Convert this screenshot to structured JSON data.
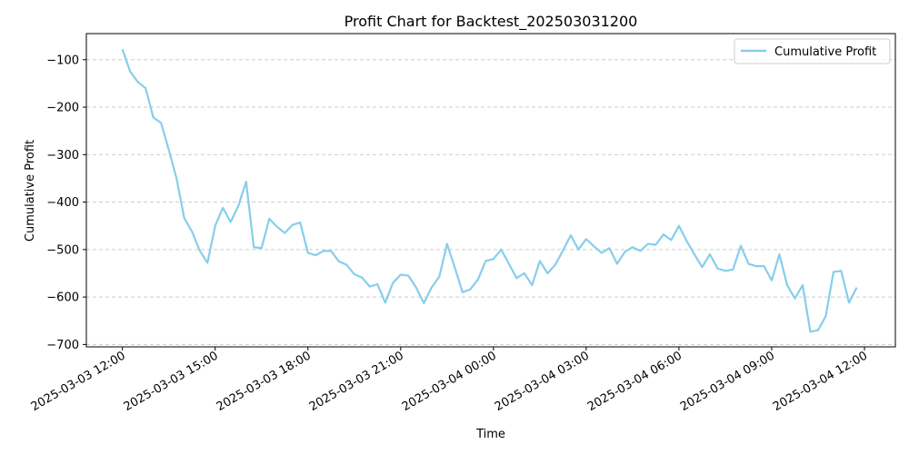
{
  "chart_data": {
    "type": "line",
    "title": "Profit Chart for Backtest_202503031200",
    "xlabel": "Time",
    "ylabel": "Cumulative Profit",
    "ylim": [
      -705,
      -45
    ],
    "xlim": [
      "2025-03-03 10:50",
      "2025-03-04 13:00"
    ],
    "yticks": [
      -100,
      -200,
      -300,
      -400,
      -500,
      -600,
      -700
    ],
    "ytick_labels": [
      "−100",
      "−200",
      "−300",
      "−400",
      "−500",
      "−600",
      "−700"
    ],
    "xticks": [
      "2025-03-03 12:00",
      "2025-03-03 15:00",
      "2025-03-03 18:00",
      "2025-03-03 21:00",
      "2025-03-04 00:00",
      "2025-03-04 03:00",
      "2025-03-04 06:00",
      "2025-03-04 09:00",
      "2025-03-04 12:00"
    ],
    "xtick_labels": [
      "2025-03-03 12:00",
      "2025-03-03 15:00",
      "2025-03-03 18:00",
      "2025-03-03 21:00",
      "2025-03-04 00:00",
      "2025-03-04 03:00",
      "2025-03-04 06:00",
      "2025-03-04 09:00",
      "2025-03-04 12:00"
    ],
    "grid": "y-dashed",
    "legend_position": "top-right",
    "series": [
      {
        "name": "Cumulative Profit",
        "color": "#87CEEB",
        "x": [
          "2025-03-03 12:00",
          "2025-03-03 12:15",
          "2025-03-03 12:30",
          "2025-03-03 12:45",
          "2025-03-03 13:00",
          "2025-03-03 13:15",
          "2025-03-03 13:30",
          "2025-03-03 13:45",
          "2025-03-03 14:00",
          "2025-03-03 14:15",
          "2025-03-03 14:30",
          "2025-03-03 14:45",
          "2025-03-03 15:00",
          "2025-03-03 15:15",
          "2025-03-03 15:30",
          "2025-03-03 15:45",
          "2025-03-03 16:00",
          "2025-03-03 16:15",
          "2025-03-03 16:30",
          "2025-03-03 16:45",
          "2025-03-03 17:00",
          "2025-03-03 17:15",
          "2025-03-03 17:30",
          "2025-03-03 17:45",
          "2025-03-03 18:00",
          "2025-03-03 18:15",
          "2025-03-03 18:30",
          "2025-03-03 18:45",
          "2025-03-03 19:00",
          "2025-03-03 19:15",
          "2025-03-03 19:30",
          "2025-03-03 19:45",
          "2025-03-03 20:00",
          "2025-03-03 20:15",
          "2025-03-03 20:30",
          "2025-03-03 20:45",
          "2025-03-03 21:00",
          "2025-03-03 21:15",
          "2025-03-03 21:30",
          "2025-03-03 21:45",
          "2025-03-03 22:00",
          "2025-03-03 22:15",
          "2025-03-03 22:30",
          "2025-03-03 22:45",
          "2025-03-03 23:00",
          "2025-03-03 23:15",
          "2025-03-03 23:30",
          "2025-03-03 23:45",
          "2025-03-04 00:00",
          "2025-03-04 00:15",
          "2025-03-04 00:30",
          "2025-03-04 00:45",
          "2025-03-04 01:00",
          "2025-03-04 01:15",
          "2025-03-04 01:30",
          "2025-03-04 01:45",
          "2025-03-04 02:00",
          "2025-03-04 02:15",
          "2025-03-04 02:30",
          "2025-03-04 02:45",
          "2025-03-04 03:00",
          "2025-03-04 03:15",
          "2025-03-04 03:30",
          "2025-03-04 03:45",
          "2025-03-04 04:00",
          "2025-03-04 04:15",
          "2025-03-04 04:30",
          "2025-03-04 04:45",
          "2025-03-04 05:00",
          "2025-03-04 05:15",
          "2025-03-04 05:30",
          "2025-03-04 05:45",
          "2025-03-04 06:00",
          "2025-03-04 06:15",
          "2025-03-04 06:30",
          "2025-03-04 06:45",
          "2025-03-04 07:00",
          "2025-03-04 07:15",
          "2025-03-04 07:30",
          "2025-03-04 07:45",
          "2025-03-04 08:00",
          "2025-03-04 08:15",
          "2025-03-04 08:30",
          "2025-03-04 08:45",
          "2025-03-04 09:00",
          "2025-03-04 09:15",
          "2025-03-04 09:30",
          "2025-03-04 09:45",
          "2025-03-04 10:00",
          "2025-03-04 10:15",
          "2025-03-04 10:30",
          "2025-03-04 10:45",
          "2025-03-04 11:00",
          "2025-03-04 11:15",
          "2025-03-04 11:30",
          "2025-03-04 11:45"
        ],
        "values": [
          -78,
          -125,
          -147,
          -160,
          -222,
          -233,
          -290,
          -350,
          -434,
          -462,
          -502,
          -528,
          -450,
          -412,
          -442,
          -408,
          -357,
          -495,
          -497,
          -435,
          -452,
          -465,
          -448,
          -443,
          -507,
          -512,
          -503,
          -503,
          -525,
          -532,
          -552,
          -559,
          -578,
          -573,
          -612,
          -570,
          -553,
          -555,
          -580,
          -613,
          -580,
          -557,
          -488,
          -538,
          -590,
          -584,
          -563,
          -524,
          -520,
          -500,
          -530,
          -560,
          -550,
          -575,
          -524,
          -550,
          -532,
          -502,
          -470,
          -500,
          -478,
          -493,
          -507,
          -497,
          -530,
          -505,
          -495,
          -503,
          -488,
          -490,
          -468,
          -480,
          -450,
          -482,
          -510,
          -537,
          -510,
          -540,
          -545,
          -542,
          -492,
          -530,
          -535,
          -535,
          -565,
          -510,
          -575,
          -603,
          -575,
          -673,
          -670,
          -640,
          -547,
          -545,
          -612,
          -580
        ]
      }
    ]
  }
}
